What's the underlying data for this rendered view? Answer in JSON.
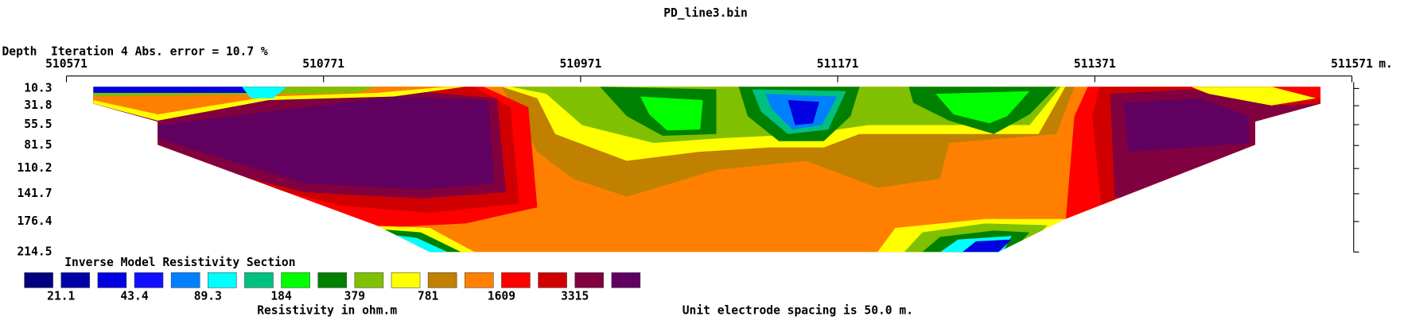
{
  "title": "PD_line3.bin",
  "header": "Depth  Iteration 4 Abs. error = 10.7 %",
  "x_axis": {
    "lim": [
      510571,
      511571
    ],
    "ticks": [
      510571,
      510771,
      510971,
      511171,
      511371,
      511571
    ],
    "unit": "m."
  },
  "depth_axis": {
    "lim": [
      10.3,
      214.5
    ],
    "ticks": [
      10.3,
      31.8,
      55.5,
      81.5,
      110.2,
      141.7,
      176.4,
      214.5
    ]
  },
  "legend": {
    "title": "Inverse Model Resistivity Section",
    "colors": [
      "#000080",
      "#0000a8",
      "#0000e0",
      "#1010ff",
      "#0080ff",
      "#00ffff",
      "#00c080",
      "#00ff00",
      "#008000",
      "#80c000",
      "#ffff00",
      "#c08000",
      "#ff8000",
      "#ff0000",
      "#d00000",
      "#800040",
      "#600060"
    ],
    "labels": [
      21.1,
      43.4,
      89.3,
      184,
      379,
      781,
      1609,
      3315
    ]
  },
  "x_label": "Resistivity in ohm.m",
  "note": "Unit electrode spacing is 50.0 m."
}
